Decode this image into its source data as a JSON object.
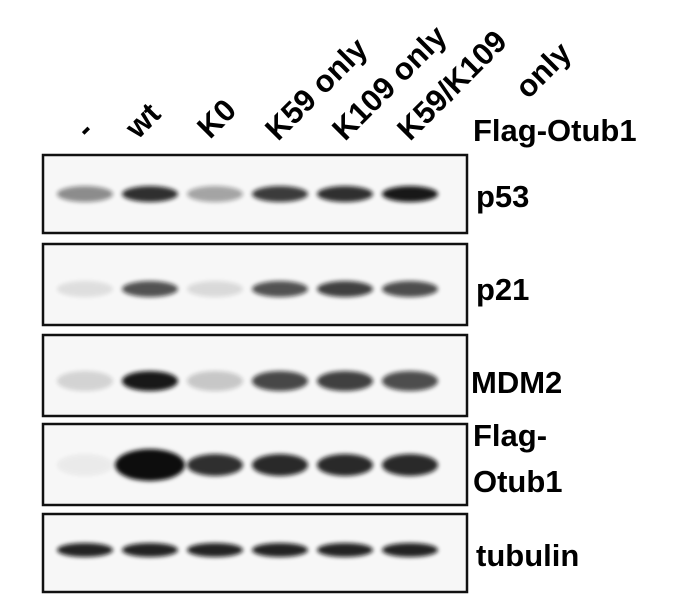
{
  "figure": {
    "lanes": [
      {
        "label": "-"
      },
      {
        "label": "wt"
      },
      {
        "label": "K0"
      },
      {
        "label": "K59 only"
      },
      {
        "label": "K109 only"
      },
      {
        "label": "K59/K109",
        "label_line2": "only"
      }
    ],
    "construct_label": "Flag-Otub1",
    "panels": [
      {
        "label": "p53",
        "intensities": [
          0.45,
          0.85,
          0.35,
          0.8,
          0.85,
          0.95
        ]
      },
      {
        "label": "p21",
        "intensities": [
          0.1,
          0.7,
          0.12,
          0.7,
          0.78,
          0.72
        ]
      },
      {
        "label": "MDM2",
        "intensities": [
          0.15,
          0.95,
          0.2,
          0.75,
          0.78,
          0.72
        ]
      },
      {
        "label": "Flag-",
        "label_line2": "Otub1",
        "intensities": [
          0.05,
          1.0,
          0.85,
          0.88,
          0.88,
          0.88
        ]
      },
      {
        "label": "tubulin",
        "intensities": [
          0.9,
          0.9,
          0.9,
          0.9,
          0.9,
          0.9
        ]
      }
    ],
    "colors": {
      "band": "#111111",
      "panel_background": "#f7f7f7",
      "frame": "#111111"
    }
  }
}
